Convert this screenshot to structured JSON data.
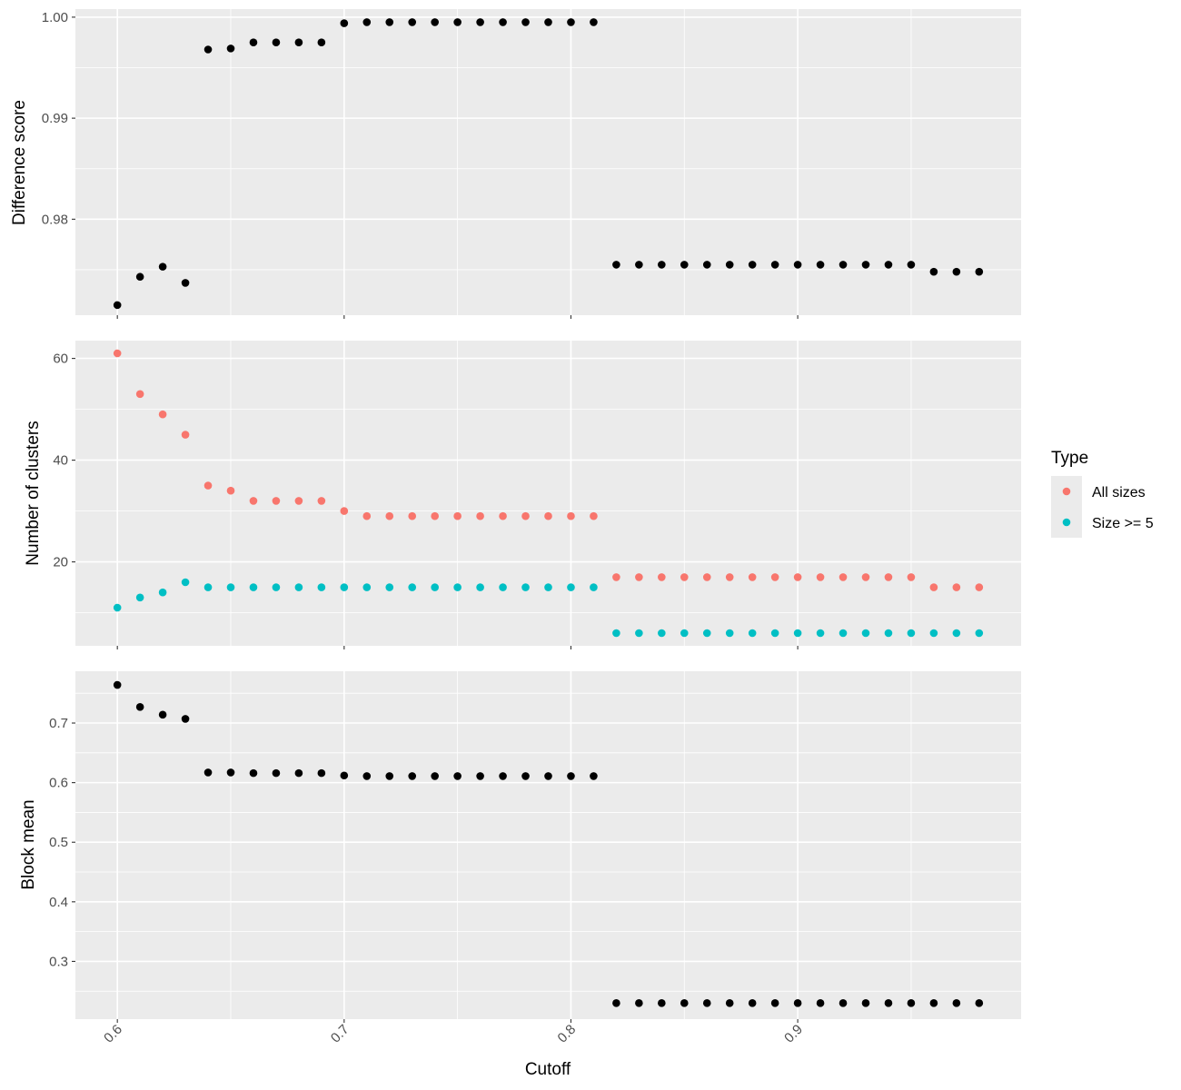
{
  "chart_data": [
    {
      "type": "scatter",
      "panel": "top",
      "ylabel": "Difference score",
      "ylim": [
        0.9705,
        1.0008
      ],
      "yticks": [
        0.98,
        0.99,
        1.0
      ],
      "ytick_labels": [
        "0.98",
        "0.99",
        "1.00"
      ],
      "xlim": [
        0.5815,
        0.9985
      ],
      "series": [
        {
          "name": "Difference score",
          "color": "#000000",
          "x": [
            0.6,
            0.61,
            0.62,
            0.63,
            0.64,
            0.65,
            0.66,
            0.67,
            0.68,
            0.69,
            0.7,
            0.71,
            0.72,
            0.73,
            0.74,
            0.75,
            0.76,
            0.77,
            0.78,
            0.79,
            0.8,
            0.81,
            0.82,
            0.83,
            0.84,
            0.85,
            0.86,
            0.87,
            0.88,
            0.89,
            0.9,
            0.91,
            0.92,
            0.93,
            0.94,
            0.95,
            0.96,
            0.97,
            0.98
          ],
          "y": [
            0.9715,
            0.9743,
            0.9753,
            0.9737,
            0.9968,
            0.9969,
            0.9975,
            0.9975,
            0.9975,
            0.9975,
            0.9994,
            0.9995,
            0.9995,
            0.9995,
            0.9995,
            0.9995,
            0.9995,
            0.9995,
            0.9995,
            0.9995,
            0.9995,
            0.9995,
            0.9755,
            0.9755,
            0.9755,
            0.9755,
            0.9755,
            0.9755,
            0.9755,
            0.9755,
            0.9755,
            0.9755,
            0.9755,
            0.9755,
            0.9755,
            0.9755,
            0.9748,
            0.9748,
            0.9748
          ]
        }
      ]
    },
    {
      "type": "scatter",
      "panel": "middle",
      "ylabel": "Number of clusters",
      "ylim": [
        3.5,
        63.5
      ],
      "yticks": [
        20,
        40,
        60
      ],
      "ytick_labels": [
        "20",
        "40",
        "60"
      ],
      "xlim": [
        0.5815,
        0.9985
      ],
      "series": [
        {
          "name": "All sizes",
          "color": "#F8766D",
          "x": [
            0.6,
            0.61,
            0.62,
            0.63,
            0.64,
            0.65,
            0.66,
            0.67,
            0.68,
            0.69,
            0.7,
            0.71,
            0.72,
            0.73,
            0.74,
            0.75,
            0.76,
            0.77,
            0.78,
            0.79,
            0.8,
            0.81,
            0.82,
            0.83,
            0.84,
            0.85,
            0.86,
            0.87,
            0.88,
            0.89,
            0.9,
            0.91,
            0.92,
            0.93,
            0.94,
            0.95,
            0.96,
            0.97,
            0.98
          ],
          "y": [
            61,
            53,
            49,
            45,
            35,
            34,
            32,
            32,
            32,
            32,
            30,
            29,
            29,
            29,
            29,
            29,
            29,
            29,
            29,
            29,
            29,
            29,
            17,
            17,
            17,
            17,
            17,
            17,
            17,
            17,
            17,
            17,
            17,
            17,
            17,
            17,
            15,
            15,
            15
          ]
        },
        {
          "name": "Size >= 5",
          "color": "#00BFC4",
          "x": [
            0.6,
            0.61,
            0.62,
            0.63,
            0.64,
            0.65,
            0.66,
            0.67,
            0.68,
            0.69,
            0.7,
            0.71,
            0.72,
            0.73,
            0.74,
            0.75,
            0.76,
            0.77,
            0.78,
            0.79,
            0.8,
            0.81,
            0.82,
            0.83,
            0.84,
            0.85,
            0.86,
            0.87,
            0.88,
            0.89,
            0.9,
            0.91,
            0.92,
            0.93,
            0.94,
            0.95,
            0.96,
            0.97,
            0.98
          ],
          "y": [
            11,
            13,
            14,
            16,
            15,
            15,
            15,
            15,
            15,
            15,
            15,
            15,
            15,
            15,
            15,
            15,
            15,
            15,
            15,
            15,
            15,
            15,
            6,
            6,
            6,
            6,
            6,
            6,
            6,
            6,
            6,
            6,
            6,
            6,
            6,
            6,
            6,
            6,
            6
          ]
        }
      ]
    },
    {
      "type": "scatter",
      "panel": "bottom",
      "ylabel": "Block mean",
      "ylim": [
        0.2031,
        0.7869
      ],
      "yticks": [
        0.3,
        0.4,
        0.5,
        0.6,
        0.7
      ],
      "ytick_labels": [
        "0.3",
        "0.4",
        "0.5",
        "0.6",
        "0.7"
      ],
      "xlim": [
        0.5815,
        0.9985
      ],
      "xticks": [
        0.6,
        0.7,
        0.8,
        0.9
      ],
      "xtick_labels": [
        "0.6",
        "0.7",
        "0.8",
        "0.9"
      ],
      "xlabel": "Cutoff",
      "series": [
        {
          "name": "Block mean",
          "color": "#000000",
          "x": [
            0.6,
            0.61,
            0.62,
            0.63,
            0.64,
            0.65,
            0.66,
            0.67,
            0.68,
            0.69,
            0.7,
            0.71,
            0.72,
            0.73,
            0.74,
            0.75,
            0.76,
            0.77,
            0.78,
            0.79,
            0.8,
            0.81,
            0.82,
            0.83,
            0.84,
            0.85,
            0.86,
            0.87,
            0.88,
            0.89,
            0.9,
            0.91,
            0.92,
            0.93,
            0.94,
            0.95,
            0.96,
            0.97,
            0.98
          ],
          "y": [
            0.764,
            0.727,
            0.714,
            0.707,
            0.617,
            0.617,
            0.616,
            0.616,
            0.616,
            0.616,
            0.612,
            0.611,
            0.611,
            0.611,
            0.611,
            0.611,
            0.611,
            0.611,
            0.611,
            0.611,
            0.611,
            0.611,
            0.23,
            0.23,
            0.23,
            0.23,
            0.23,
            0.23,
            0.23,
            0.23,
            0.23,
            0.23,
            0.23,
            0.23,
            0.23,
            0.23,
            0.23,
            0.23,
            0.23
          ]
        }
      ]
    }
  ],
  "legend": {
    "title": "Type",
    "entries": [
      {
        "label": "All sizes",
        "color": "#F8766D"
      },
      {
        "label": "Size >= 5",
        "color": "#00BFC4"
      }
    ]
  },
  "xaxis": {
    "label": "Cutoff"
  }
}
